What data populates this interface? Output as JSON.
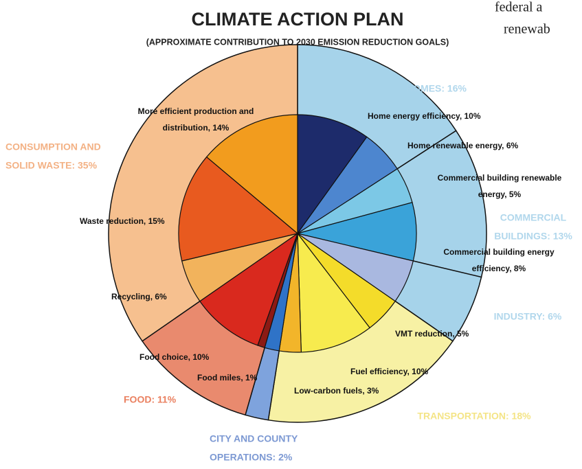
{
  "chart_data": {
    "type": "sunburst",
    "title": "CLIMATE ACTION PLAN",
    "subtitle": "(APPROXIMATE CONTRIBUTION TO 2030 EMISSION REDUCTION GOALS)",
    "fragments": [
      "federal a",
      "renewab"
    ],
    "groups": [
      {
        "label": [
          "HOMES: 16%"
        ],
        "value": 16,
        "color": "#a6d3ea",
        "text_color": "#a9d3ea"
      },
      {
        "label": [
          "COMMERCIAL",
          "BUILDINGS: 13%"
        ],
        "value": 13,
        "color": "#a6d3ea",
        "text_color": "#a9d3ea"
      },
      {
        "label": [
          "INDUSTRY: 6%"
        ],
        "value": 6,
        "color": "#a6d3ea",
        "text_color": "#a9d3ea"
      },
      {
        "label": [
          "TRANSPORTATION: 18%"
        ],
        "value": 18,
        "color": "#f7f1a4",
        "text_color": "#f3e27a"
      },
      {
        "label": [
          "CITY AND COUNTY",
          "OPERATIONS: 2%"
        ],
        "value": 2,
        "color": "#7ea3dd",
        "text_color": "#6f8fcf"
      },
      {
        "label": [
          "FOOD: 11%"
        ],
        "value": 11,
        "color": "#e98a6e",
        "text_color": "#e8734f"
      },
      {
        "label": [
          "CONSUMPTION AND",
          "SOLID WASTE: 35%"
        ],
        "value": 35,
        "color": "#f6c08f",
        "text_color": "#f2a977"
      }
    ],
    "slices": [
      {
        "label": [
          "Home energy efficiency, 10%"
        ],
        "value": 10,
        "color": "#1d2b6b"
      },
      {
        "label": [
          "Home renewable energy, 6%"
        ],
        "value": 6,
        "color": "#4d86cf"
      },
      {
        "label": [
          "Commercial building renewable",
          "energy, 5%"
        ],
        "value": 5,
        "color": "#7cc8e6"
      },
      {
        "label": [
          "Commercial building energy",
          "efficiency, 8%"
        ],
        "value": 8,
        "color": "#3aa3d9"
      },
      {
        "label": null,
        "value": 6,
        "color": "#a9b8e0"
      },
      {
        "label": [
          "VMT reduction, 5%"
        ],
        "value": 5,
        "color": "#f4dc2a"
      },
      {
        "label": [
          "Fuel efficiency, 10%"
        ],
        "value": 10,
        "color": "#f7eb4e"
      },
      {
        "label": [
          "Low-carbon fuels, 3%"
        ],
        "value": 3,
        "color": "#f2b52a"
      },
      {
        "label": null,
        "value": 2,
        "color": "#2f73c7"
      },
      {
        "label": [
          "Food miles, 1%"
        ],
        "value": 1,
        "color": "#8c1a14"
      },
      {
        "label": [
          "Food choice, 10%"
        ],
        "value": 10,
        "color": "#d9291e"
      },
      {
        "label": [
          "Recycling, 6%"
        ],
        "value": 6,
        "color": "#f2b35c"
      },
      {
        "label": [
          "Waste reduction, 15%"
        ],
        "value": 15,
        "color": "#e85a1f"
      },
      {
        "label": [
          "More efficient production and",
          "distribution, 14%"
        ],
        "value": 14,
        "color": "#f29c1e"
      }
    ]
  }
}
